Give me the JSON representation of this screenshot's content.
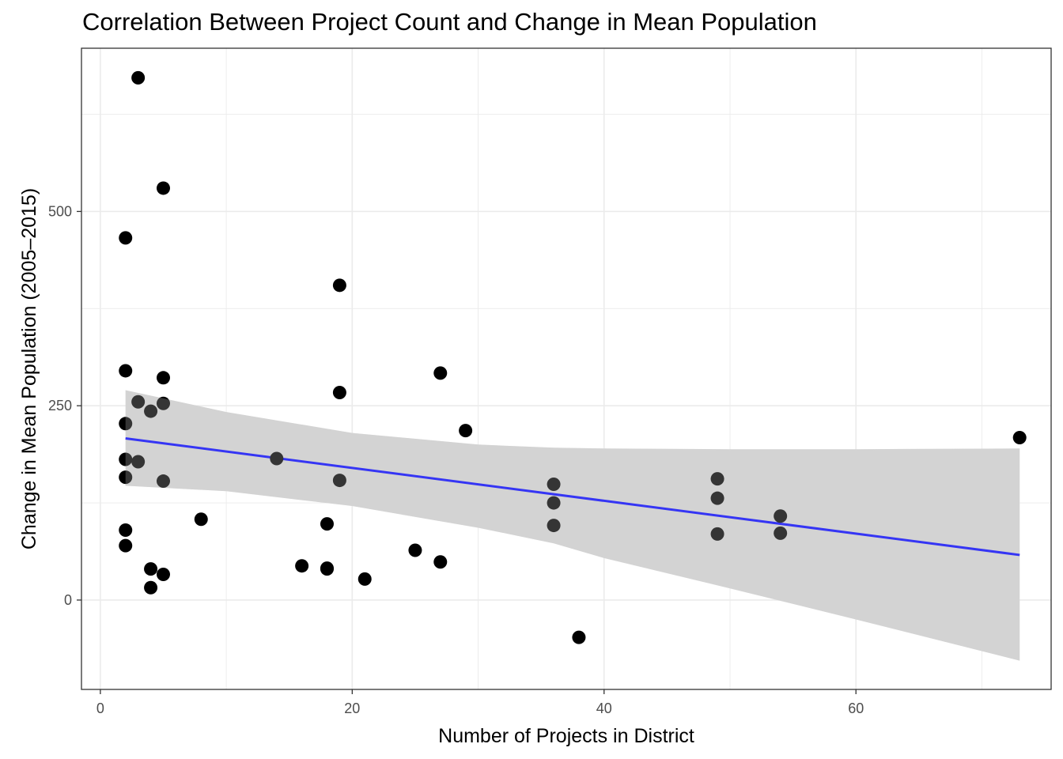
{
  "chart_data": {
    "type": "scatter",
    "title": "Correlation Between Project Count and Change in Mean Population",
    "xlabel": "Number of Projects in District",
    "ylabel": "Change in Mean Population (2005–2015)",
    "xlim": [
      -1.5,
      75.5
    ],
    "ylim": [
      -115,
      710
    ],
    "x_ticks": [
      0,
      20,
      40,
      60
    ],
    "y_ticks": [
      0,
      250,
      500
    ],
    "grid": true,
    "theme": "bw",
    "point_color": "#000000",
    "fit_color": "#0000ff",
    "band_color": "#d3d3d3",
    "points": [
      {
        "x": 2,
        "y": 466
      },
      {
        "x": 2,
        "y": 295
      },
      {
        "x": 2,
        "y": 227
      },
      {
        "x": 2,
        "y": 181
      },
      {
        "x": 2,
        "y": 158
      },
      {
        "x": 2,
        "y": 90
      },
      {
        "x": 2,
        "y": 70
      },
      {
        "x": 3,
        "y": 672
      },
      {
        "x": 3,
        "y": 255
      },
      {
        "x": 3,
        "y": 178
      },
      {
        "x": 4,
        "y": 243
      },
      {
        "x": 4,
        "y": 40
      },
      {
        "x": 4,
        "y": 16
      },
      {
        "x": 5,
        "y": 530
      },
      {
        "x": 5,
        "y": 286
      },
      {
        "x": 5,
        "y": 253
      },
      {
        "x": 5,
        "y": 153
      },
      {
        "x": 5,
        "y": 33
      },
      {
        "x": 8,
        "y": 104
      },
      {
        "x": 14,
        "y": 182
      },
      {
        "x": 16,
        "y": 44
      },
      {
        "x": 18,
        "y": 98
      },
      {
        "x": 18,
        "y": 41
      },
      {
        "x": 18,
        "y": 40
      },
      {
        "x": 19,
        "y": 405
      },
      {
        "x": 19,
        "y": 267
      },
      {
        "x": 19,
        "y": 154
      },
      {
        "x": 21,
        "y": 27
      },
      {
        "x": 25,
        "y": 64
      },
      {
        "x": 27,
        "y": 292
      },
      {
        "x": 27,
        "y": 49
      },
      {
        "x": 29,
        "y": 218
      },
      {
        "x": 36,
        "y": 149
      },
      {
        "x": 36,
        "y": 125
      },
      {
        "x": 36,
        "y": 96
      },
      {
        "x": 38,
        "y": -48
      },
      {
        "x": 49,
        "y": 156
      },
      {
        "x": 49,
        "y": 131
      },
      {
        "x": 49,
        "y": 85
      },
      {
        "x": 54,
        "y": 108
      },
      {
        "x": 54,
        "y": 86
      },
      {
        "x": 73,
        "y": 209
      }
    ],
    "fit_line": {
      "x": [
        2,
        73
      ],
      "y": [
        208,
        58
      ]
    },
    "confidence_band": {
      "x": [
        2,
        10,
        20,
        30,
        36,
        40,
        50,
        60,
        73
      ],
      "upper": [
        270,
        242,
        215,
        200,
        196,
        195,
        194,
        194,
        195
      ],
      "lower": [
        147,
        140,
        121,
        93,
        73,
        54,
        15,
        -25,
        -78
      ]
    }
  }
}
